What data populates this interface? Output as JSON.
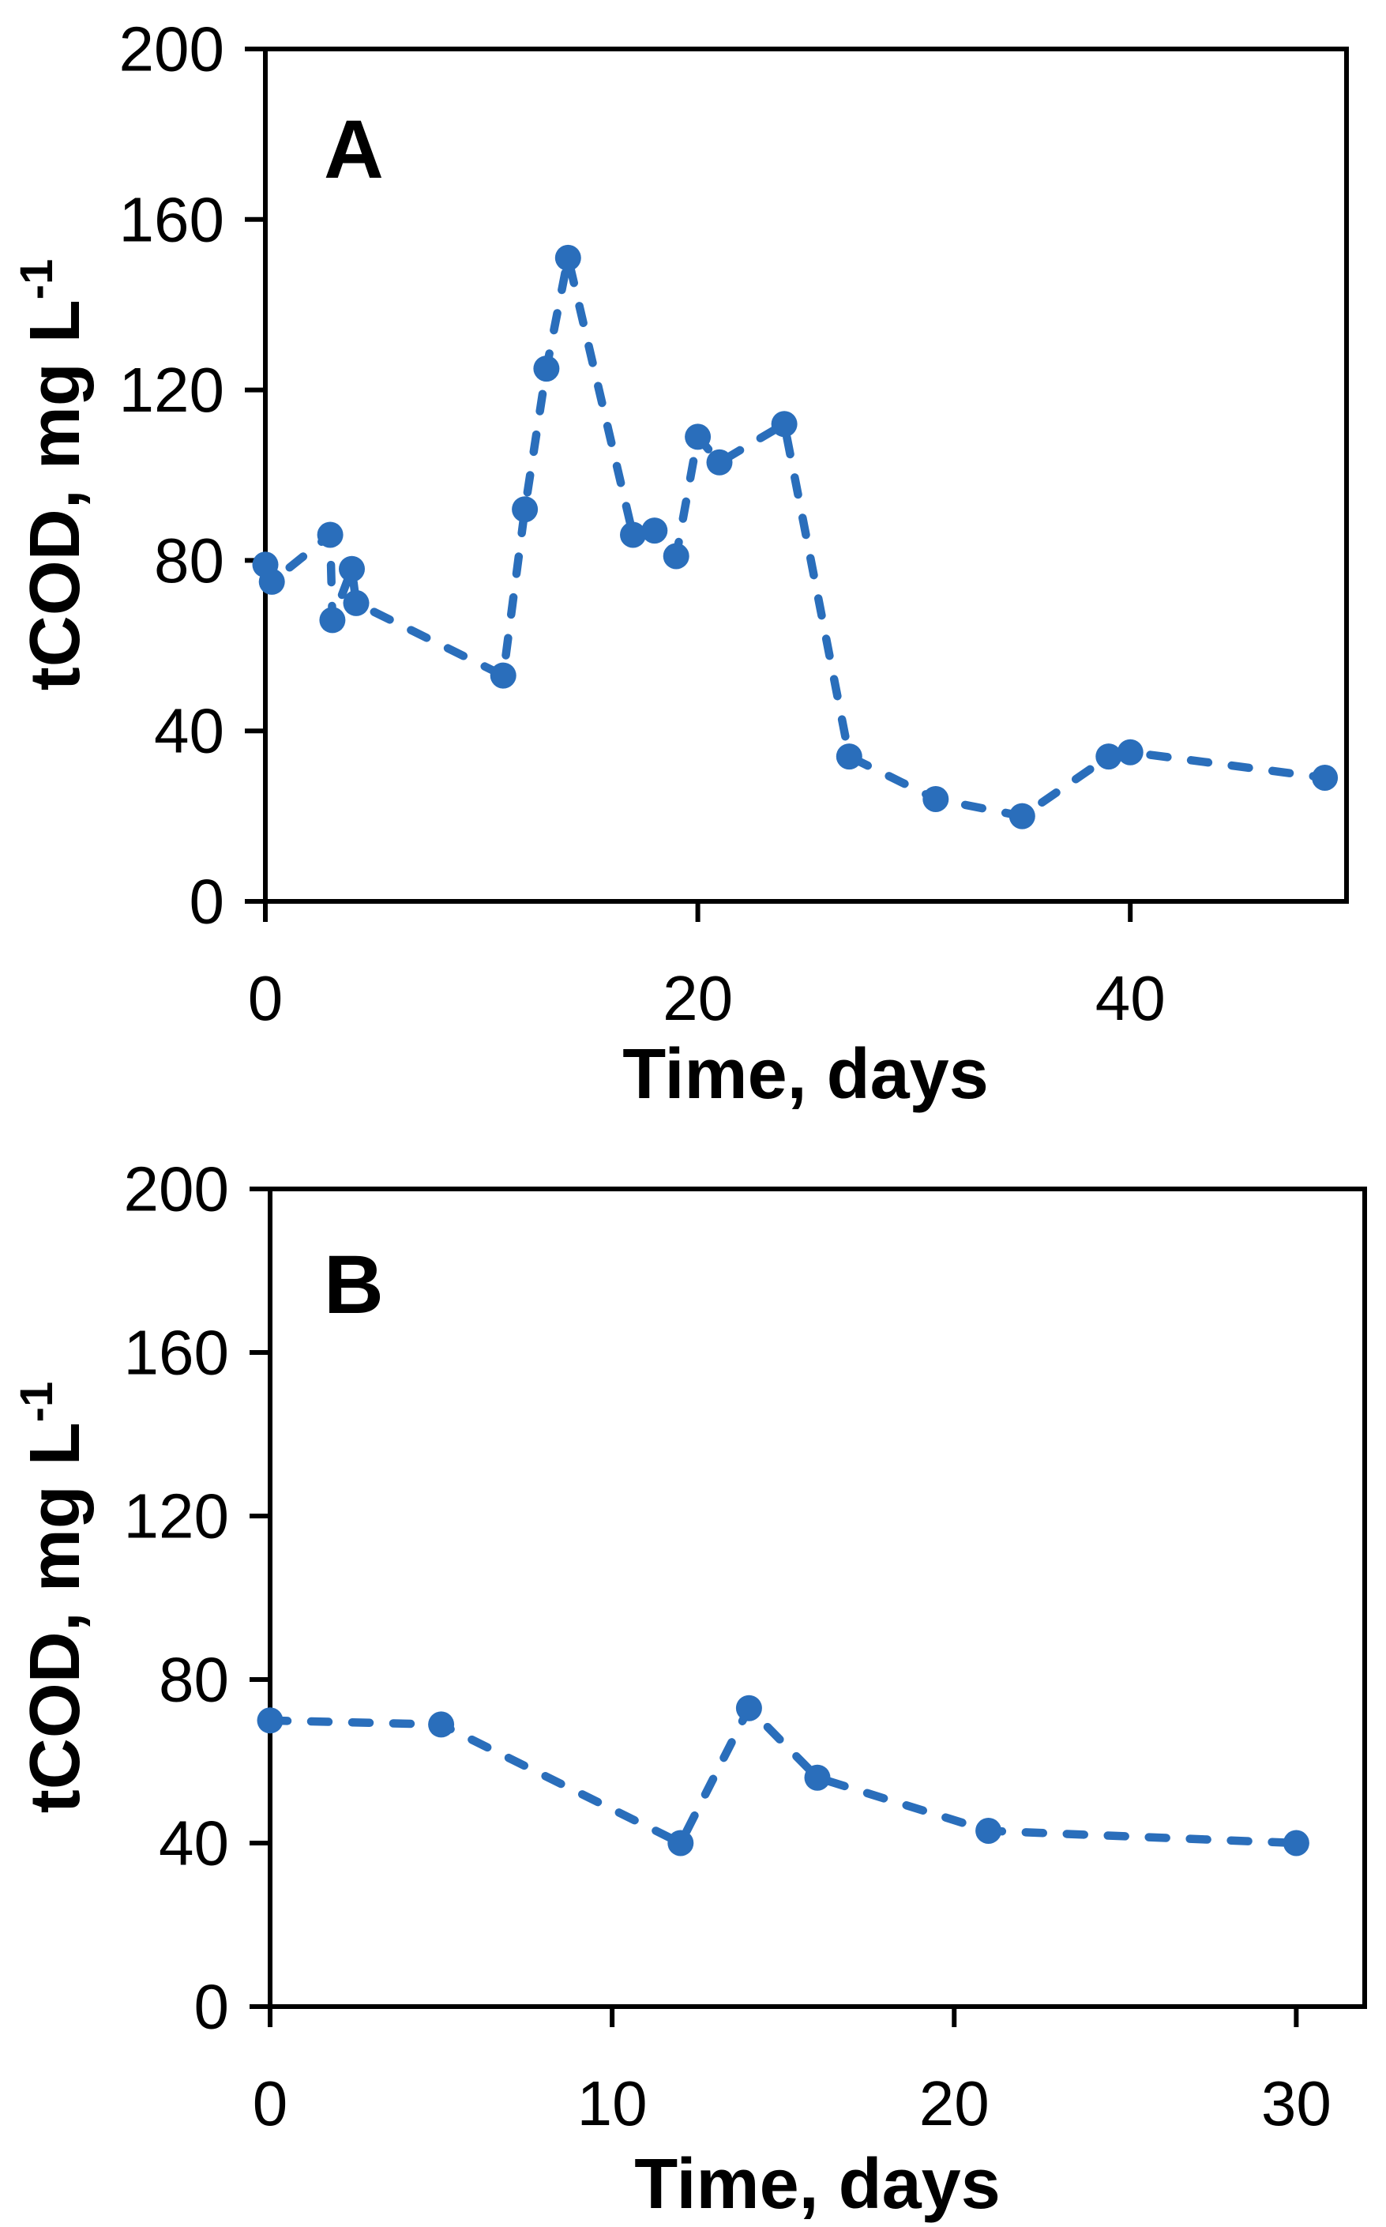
{
  "figure": {
    "background": "#ffffff",
    "accent_color": "#2a6ebb",
    "axis_color": "#000000"
  },
  "chart_data": [
    {
      "type": "line",
      "panel_label": "A",
      "title": "",
      "xlabel": "Time, days",
      "ylabel": "tCOD, mg L-1",
      "ylabel_main": "tCOD, mg L",
      "ylabel_sup": "-1",
      "xlim": [
        0,
        50
      ],
      "ylim": [
        0,
        200
      ],
      "xticks": [
        0,
        20,
        40
      ],
      "yticks": [
        0,
        40,
        80,
        120,
        160,
        200
      ],
      "grid": false,
      "legend": "none",
      "line_style": "dashed",
      "marker": "circle",
      "color": "#2a6ebb",
      "series": [
        {
          "name": "tCOD",
          "points": [
            [
              0,
              79
            ],
            [
              0.3,
              75
            ],
            [
              3,
              86
            ],
            [
              3.1,
              66
            ],
            [
              4,
              78
            ],
            [
              4.2,
              70
            ],
            [
              11,
              53
            ],
            [
              12,
              92
            ],
            [
              13,
              125
            ],
            [
              14,
              151
            ],
            [
              17,
              86
            ],
            [
              18,
              87
            ],
            [
              19,
              81
            ],
            [
              20,
              109
            ],
            [
              21,
              103
            ],
            [
              24,
              112
            ],
            [
              27,
              34
            ],
            [
              31,
              24
            ],
            [
              35,
              20
            ],
            [
              39,
              34
            ],
            [
              40,
              35
            ],
            [
              49,
              29
            ]
          ]
        }
      ]
    },
    {
      "type": "line",
      "panel_label": "B",
      "title": "",
      "xlabel": "Time, days",
      "ylabel": "tCOD, mg L-1",
      "ylabel_main": "tCOD, mg L",
      "ylabel_sup": "-1",
      "xlim": [
        0,
        32
      ],
      "ylim": [
        0,
        200
      ],
      "xticks": [
        0,
        10,
        20,
        30
      ],
      "yticks": [
        0,
        40,
        80,
        120,
        160,
        200
      ],
      "grid": false,
      "legend": "none",
      "line_style": "dashed",
      "marker": "circle",
      "color": "#2a6ebb",
      "series": [
        {
          "name": "tCOD",
          "points": [
            [
              0,
              70
            ],
            [
              5,
              69
            ],
            [
              12,
              40
            ],
            [
              14,
              73
            ],
            [
              16,
              56
            ],
            [
              21,
              43
            ],
            [
              30,
              40
            ]
          ]
        }
      ]
    }
  ]
}
